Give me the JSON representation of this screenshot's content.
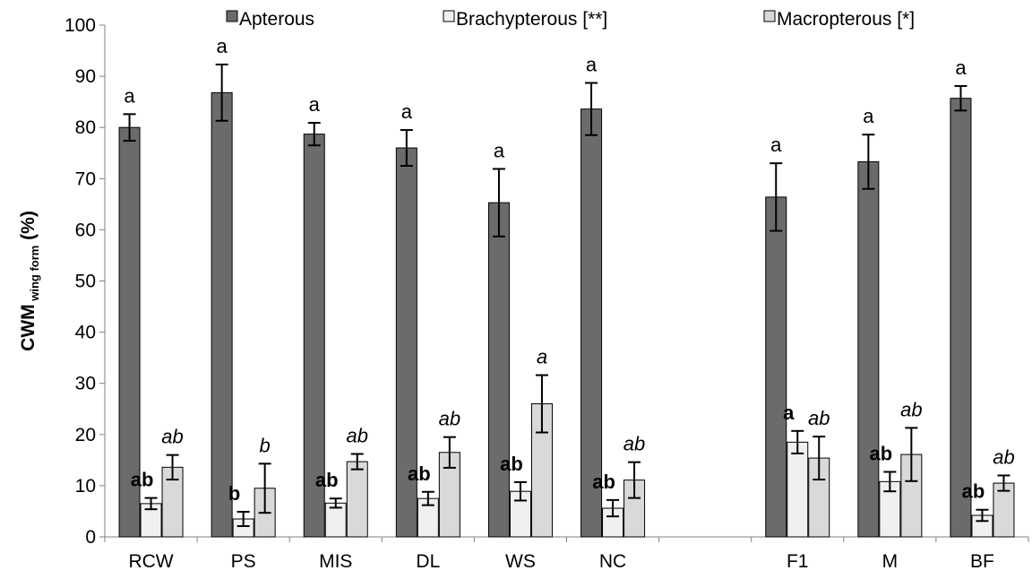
{
  "chart_data": {
    "type": "bar",
    "categories": [
      "RCW",
      "PS",
      "MIS",
      "DL",
      "WS",
      "NC",
      "",
      "F1",
      "M",
      "BF"
    ],
    "ylim": [
      0,
      100
    ],
    "yticks": [
      "0",
      "10",
      "20",
      "30",
      "40",
      "50",
      "60",
      "70",
      "80",
      "90",
      "100"
    ],
    "ylabel": {
      "main": "CWM",
      "sub": "wing form",
      "unit": " (%)"
    },
    "grid": false,
    "legend_position": "top",
    "series": [
      {
        "name": "Apterous",
        "color": "#6b6b6b",
        "values": [
          80.0,
          86.8,
          78.7,
          76.0,
          65.3,
          83.6,
          null,
          66.4,
          73.3,
          85.7
        ],
        "errors": [
          2.6,
          5.5,
          2.2,
          3.5,
          6.6,
          5.1,
          null,
          6.6,
          5.3,
          2.4
        ],
        "annotations": [
          "a",
          "a",
          "a",
          "a",
          "a",
          "a",
          "",
          "a",
          "a",
          "a"
        ],
        "annotation_style": "normal"
      },
      {
        "name": "Brachypterous [**]",
        "color": "#f0f0f0",
        "values": [
          6.5,
          3.5,
          6.6,
          7.5,
          8.9,
          5.6,
          null,
          18.5,
          10.8,
          4.2
        ],
        "errors": [
          1.1,
          1.4,
          0.9,
          1.3,
          1.8,
          1.6,
          null,
          2.2,
          1.9,
          1.1
        ],
        "annotations": [
          "ab",
          "b",
          "ab",
          "ab",
          "ab",
          "ab",
          "",
          "a",
          "ab",
          "ab"
        ],
        "annotation_style": "bold"
      },
      {
        "name": "Macropterous [*]",
        "color": "#d9d9d9",
        "values": [
          13.6,
          9.5,
          14.7,
          16.5,
          26.0,
          11.1,
          null,
          15.4,
          16.1,
          10.5
        ],
        "errors": [
          2.4,
          4.8,
          1.5,
          3.0,
          5.6,
          3.5,
          null,
          4.2,
          5.2,
          1.5
        ],
        "annotations": [
          "ab",
          "b",
          "ab",
          "ab",
          "a",
          "ab",
          "",
          "ab",
          "ab",
          "ab"
        ],
        "annotation_style": "italic"
      }
    ]
  }
}
